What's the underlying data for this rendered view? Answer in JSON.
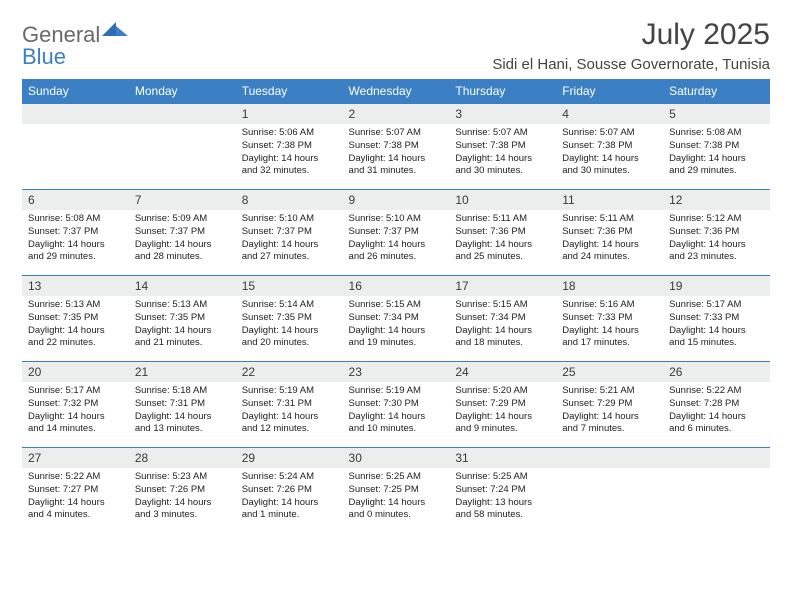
{
  "logo": {
    "word1": "General",
    "word2": "Blue"
  },
  "title": "July 2025",
  "location": "Sidi el Hani, Sousse Governorate, Tunisia",
  "colors": {
    "accent": "#3b7fc4",
    "header_row_bg": "#eceded",
    "text": "#222222",
    "title_text": "#444444",
    "logo_gray": "#6a6a6a"
  },
  "weekdays": [
    "Sunday",
    "Monday",
    "Tuesday",
    "Wednesday",
    "Thursday",
    "Friday",
    "Saturday"
  ],
  "weeks": [
    [
      null,
      null,
      {
        "n": "1",
        "sr": "5:06 AM",
        "ss": "7:38 PM",
        "dl": "14 hours and 32 minutes."
      },
      {
        "n": "2",
        "sr": "5:07 AM",
        "ss": "7:38 PM",
        "dl": "14 hours and 31 minutes."
      },
      {
        "n": "3",
        "sr": "5:07 AM",
        "ss": "7:38 PM",
        "dl": "14 hours and 30 minutes."
      },
      {
        "n": "4",
        "sr": "5:07 AM",
        "ss": "7:38 PM",
        "dl": "14 hours and 30 minutes."
      },
      {
        "n": "5",
        "sr": "5:08 AM",
        "ss": "7:38 PM",
        "dl": "14 hours and 29 minutes."
      }
    ],
    [
      {
        "n": "6",
        "sr": "5:08 AM",
        "ss": "7:37 PM",
        "dl": "14 hours and 29 minutes."
      },
      {
        "n": "7",
        "sr": "5:09 AM",
        "ss": "7:37 PM",
        "dl": "14 hours and 28 minutes."
      },
      {
        "n": "8",
        "sr": "5:10 AM",
        "ss": "7:37 PM",
        "dl": "14 hours and 27 minutes."
      },
      {
        "n": "9",
        "sr": "5:10 AM",
        "ss": "7:37 PM",
        "dl": "14 hours and 26 minutes."
      },
      {
        "n": "10",
        "sr": "5:11 AM",
        "ss": "7:36 PM",
        "dl": "14 hours and 25 minutes."
      },
      {
        "n": "11",
        "sr": "5:11 AM",
        "ss": "7:36 PM",
        "dl": "14 hours and 24 minutes."
      },
      {
        "n": "12",
        "sr": "5:12 AM",
        "ss": "7:36 PM",
        "dl": "14 hours and 23 minutes."
      }
    ],
    [
      {
        "n": "13",
        "sr": "5:13 AM",
        "ss": "7:35 PM",
        "dl": "14 hours and 22 minutes."
      },
      {
        "n": "14",
        "sr": "5:13 AM",
        "ss": "7:35 PM",
        "dl": "14 hours and 21 minutes."
      },
      {
        "n": "15",
        "sr": "5:14 AM",
        "ss": "7:35 PM",
        "dl": "14 hours and 20 minutes."
      },
      {
        "n": "16",
        "sr": "5:15 AM",
        "ss": "7:34 PM",
        "dl": "14 hours and 19 minutes."
      },
      {
        "n": "17",
        "sr": "5:15 AM",
        "ss": "7:34 PM",
        "dl": "14 hours and 18 minutes."
      },
      {
        "n": "18",
        "sr": "5:16 AM",
        "ss": "7:33 PM",
        "dl": "14 hours and 17 minutes."
      },
      {
        "n": "19",
        "sr": "5:17 AM",
        "ss": "7:33 PM",
        "dl": "14 hours and 15 minutes."
      }
    ],
    [
      {
        "n": "20",
        "sr": "5:17 AM",
        "ss": "7:32 PM",
        "dl": "14 hours and 14 minutes."
      },
      {
        "n": "21",
        "sr": "5:18 AM",
        "ss": "7:31 PM",
        "dl": "14 hours and 13 minutes."
      },
      {
        "n": "22",
        "sr": "5:19 AM",
        "ss": "7:31 PM",
        "dl": "14 hours and 12 minutes."
      },
      {
        "n": "23",
        "sr": "5:19 AM",
        "ss": "7:30 PM",
        "dl": "14 hours and 10 minutes."
      },
      {
        "n": "24",
        "sr": "5:20 AM",
        "ss": "7:29 PM",
        "dl": "14 hours and 9 minutes."
      },
      {
        "n": "25",
        "sr": "5:21 AM",
        "ss": "7:29 PM",
        "dl": "14 hours and 7 minutes."
      },
      {
        "n": "26",
        "sr": "5:22 AM",
        "ss": "7:28 PM",
        "dl": "14 hours and 6 minutes."
      }
    ],
    [
      {
        "n": "27",
        "sr": "5:22 AM",
        "ss": "7:27 PM",
        "dl": "14 hours and 4 minutes."
      },
      {
        "n": "28",
        "sr": "5:23 AM",
        "ss": "7:26 PM",
        "dl": "14 hours and 3 minutes."
      },
      {
        "n": "29",
        "sr": "5:24 AM",
        "ss": "7:26 PM",
        "dl": "14 hours and 1 minute."
      },
      {
        "n": "30",
        "sr": "5:25 AM",
        "ss": "7:25 PM",
        "dl": "14 hours and 0 minutes."
      },
      {
        "n": "31",
        "sr": "5:25 AM",
        "ss": "7:24 PM",
        "dl": "13 hours and 58 minutes."
      },
      null,
      null
    ]
  ],
  "labels": {
    "sunrise": "Sunrise:",
    "sunset": "Sunset:",
    "daylight": "Daylight:"
  }
}
